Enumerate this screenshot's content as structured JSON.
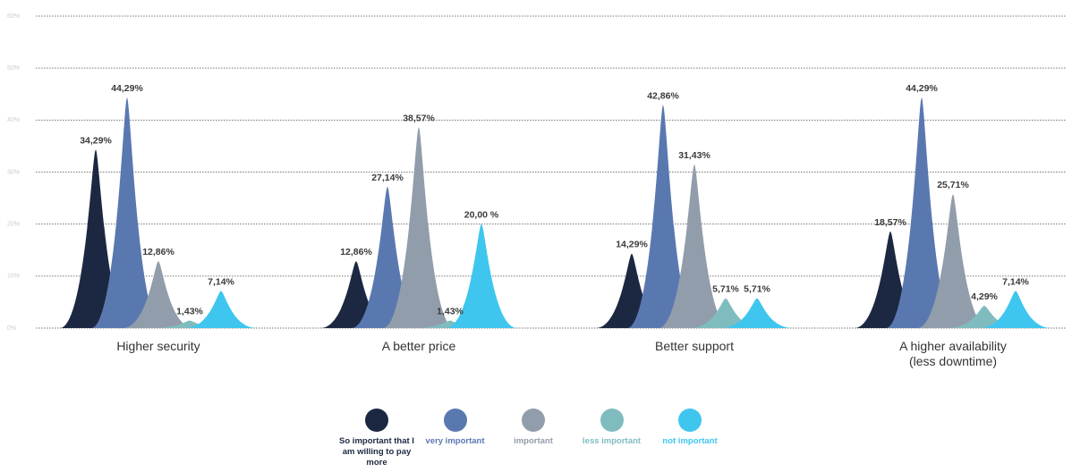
{
  "chart_data": {
    "type": "spike",
    "categories": [
      "Higher security",
      "A better price",
      "Better support",
      "A higher availability\n(less downtime)"
    ],
    "series": [
      {
        "name": "So important that I am willing to pay more",
        "color": "#1c2841",
        "values": [
          34.29,
          12.86,
          14.29,
          18.57
        ],
        "value_labels": [
          "34,29%",
          "12,86%",
          "14,29%",
          "18,57%"
        ]
      },
      {
        "name": "very important",
        "color": "#5a78b0",
        "values": [
          44.29,
          27.14,
          42.86,
          44.29
        ],
        "value_labels": [
          "44,29%",
          "27,14%",
          "42,86%",
          "44,29%"
        ]
      },
      {
        "name": "important",
        "color": "#929dab",
        "values": [
          12.86,
          38.57,
          31.43,
          25.71
        ],
        "value_labels": [
          "12,86%",
          "38,57%",
          "31,43%",
          "25,71%"
        ]
      },
      {
        "name": "less important",
        "color": "#7fbcbf",
        "values": [
          1.43,
          1.43,
          5.71,
          4.29
        ],
        "value_labels": [
          "1,43%",
          "1,43%",
          "5,71%",
          "4,29%"
        ]
      },
      {
        "name": "not important",
        "color": "#3ec6ef",
        "values": [
          7.14,
          20.0,
          5.71,
          7.14
        ],
        "value_labels": [
          "7,14%",
          "20,00 %",
          "5,71%",
          "7,14%"
        ]
      }
    ],
    "ylim": [
      0,
      60
    ],
    "yticks": [
      {
        "value": 0,
        "label": "0%"
      },
      {
        "value": 10,
        "label": "10%"
      },
      {
        "value": 20,
        "label": "20%"
      },
      {
        "value": 30,
        "label": "30%"
      },
      {
        "value": 40,
        "label": "40%"
      },
      {
        "value": 50,
        "label": "50%"
      },
      {
        "value": 60,
        "label": "60%"
      }
    ],
    "grid": true
  }
}
